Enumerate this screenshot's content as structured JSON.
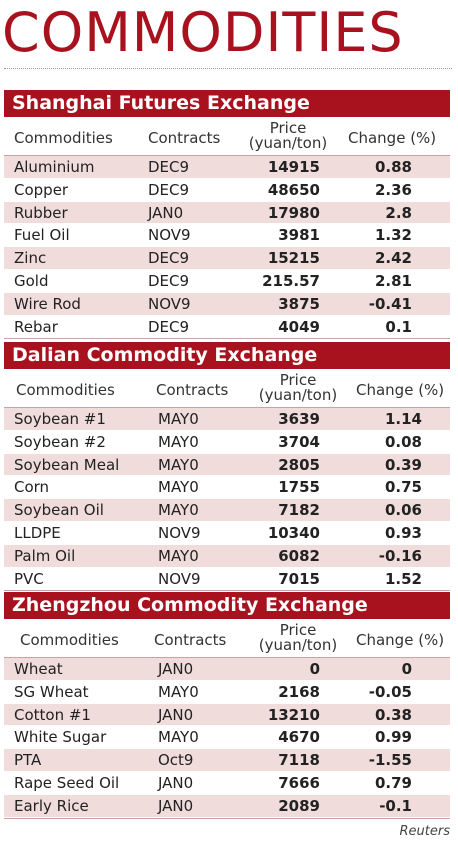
{
  "title": "COMMODITIES",
  "columns": {
    "commodities": "Commodities",
    "contracts": "Contracts",
    "price_line1": "Price",
    "price_line2": "(yuan/ton)",
    "change": "Change (%)"
  },
  "sections": [
    {
      "name": "Shanghai Futures Exchange",
      "rows": [
        {
          "commodity": "Aluminium",
          "contract": "DEC9",
          "price": "14915",
          "change": "0.88"
        },
        {
          "commodity": "Copper",
          "contract": "DEC9",
          "price": "48650",
          "change": "2.36"
        },
        {
          "commodity": "Rubber",
          "contract": "JAN0",
          "price": "17980",
          "change": "2.8"
        },
        {
          "commodity": "Fuel Oil",
          "contract": "NOV9",
          "price": "3981",
          "change": "1.32"
        },
        {
          "commodity": "Zinc",
          "contract": "DEC9",
          "price": "15215",
          "change": "2.42"
        },
        {
          "commodity": "Gold",
          "contract": "DEC9",
          "price": "215.57",
          "change": "2.81"
        },
        {
          "commodity": "Wire Rod",
          "contract": "NOV9",
          "price": "3875",
          "change": "-0.41"
        },
        {
          "commodity": "Rebar",
          "contract": "DEC9",
          "price": "4049",
          "change": "0.1"
        }
      ]
    },
    {
      "name": "Dalian Commodity Exchange",
      "rows": [
        {
          "commodity": "Soybean #1",
          "contract": "MAY0",
          "price": "3639",
          "change": "1.14"
        },
        {
          "commodity": "Soybean #2",
          "contract": "MAY0",
          "price": "3704",
          "change": "0.08"
        },
        {
          "commodity": "Soybean Meal",
          "contract": "MAY0",
          "price": "2805",
          "change": "0.39"
        },
        {
          "commodity": "Corn",
          "contract": "MAY0",
          "price": "1755",
          "change": "0.75"
        },
        {
          "commodity": "Soybean Oil",
          "contract": "MAY0",
          "price": "7182",
          "change": "0.06"
        },
        {
          "commodity": "LLDPE",
          "contract": "NOV9",
          "price": "10340",
          "change": "0.93"
        },
        {
          "commodity": "Palm Oil",
          "contract": "MAY0",
          "price": "6082",
          "change": "-0.16"
        },
        {
          "commodity": "PVC",
          "contract": "NOV9",
          "price": "7015",
          "change": "1.52"
        }
      ]
    },
    {
      "name": "Zhengzhou Commodity Exchange",
      "rows": [
        {
          "commodity": "Wheat",
          "contract": "JAN0",
          "price": "0",
          "change": "0"
        },
        {
          "commodity": "SG Wheat",
          "contract": "MAY0",
          "price": "2168",
          "change": "-0.05"
        },
        {
          "commodity": "Cotton #1",
          "contract": "JAN0",
          "price": "13210",
          "change": "0.38"
        },
        {
          "commodity": "White Sugar",
          "contract": "MAY0",
          "price": "4670",
          "change": "0.99"
        },
        {
          "commodity": "PTA",
          "contract": "Oct9",
          "price": "7118",
          "change": "-1.55"
        },
        {
          "commodity": "Rape Seed Oil",
          "contract": "JAN0",
          "price": "7666",
          "change": "0.79"
        },
        {
          "commodity": "Early Rice",
          "contract": "JAN0",
          "price": "2089",
          "change": "-0.1"
        }
      ]
    }
  ],
  "source": "Reuters",
  "colors": {
    "accent": "#a8121f",
    "stripe": "#f1dcdc"
  }
}
